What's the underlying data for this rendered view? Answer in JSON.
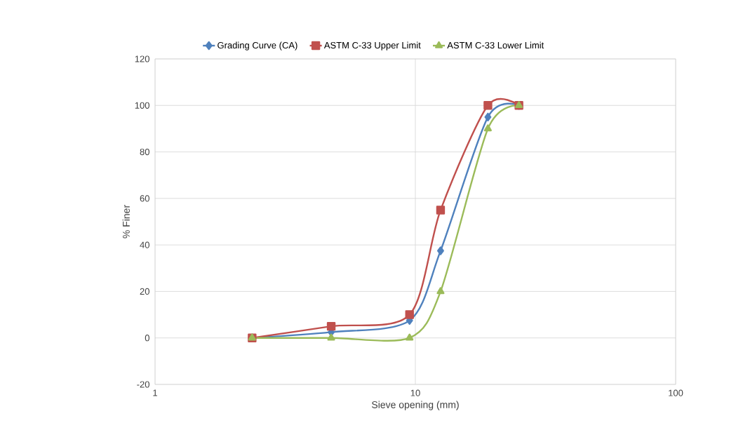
{
  "chart_data": {
    "type": "line",
    "xlabel": "Sieve opening (mm)",
    "ylabel": "% Finer",
    "log": "x",
    "xlim": [
      1,
      100
    ],
    "xticks": [
      1,
      10,
      100
    ],
    "ylim": [
      -20,
      120
    ],
    "yticks": [
      -20,
      0,
      20,
      40,
      60,
      80,
      100,
      120
    ],
    "grid": true,
    "legend": "top",
    "line_style": "solid",
    "series": [
      {
        "name": "Grading Curve (CA)",
        "color": "#4f81bd",
        "marker": "diamond",
        "x": [
          2.36,
          4.75,
          9.5,
          12.5,
          19,
          25
        ],
        "values": [
          0,
          2.5,
          7.5,
          37.5,
          95,
          100
        ]
      },
      {
        "name": "ASTM C-33 Upper Limit",
        "color": "#c0504d",
        "marker": "square",
        "x": [
          2.36,
          4.75,
          9.5,
          12.5,
          19,
          25
        ],
        "values": [
          0,
          5,
          10,
          55,
          100,
          100
        ]
      },
      {
        "name": "ASTM C-33 Lower Limit",
        "color": "#9bbb59",
        "marker": "triangle",
        "x": [
          2.36,
          4.75,
          9.5,
          12.5,
          19,
          25
        ],
        "values": [
          0,
          0,
          0,
          20,
          90,
          100
        ]
      }
    ]
  }
}
